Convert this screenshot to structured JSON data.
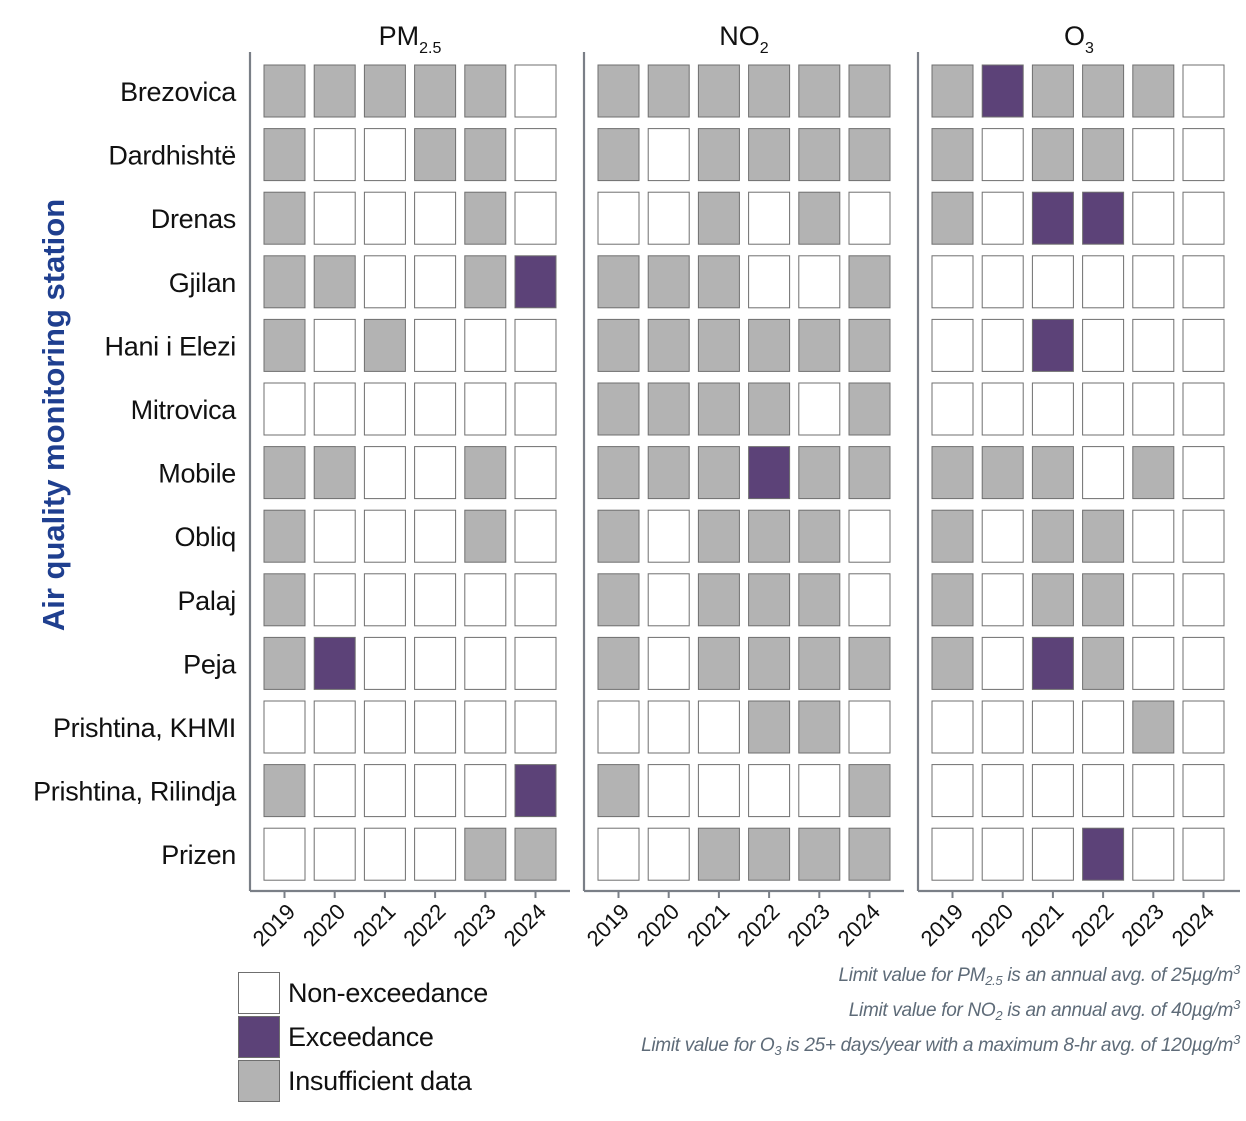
{
  "chart_data": {
    "type": "heatmap",
    "ylabel": "Air quality monitoring station",
    "stations": [
      "Brezovica",
      "Dardhishtë",
      "Drenas",
      "Gjilan",
      "Hani i Elezi",
      "Mitrovica",
      "Mobile",
      "Obliq",
      "Palaj",
      "Peja",
      "Prishtina, KHMI",
      "Prishtina, Rilindja",
      "Prizen"
    ],
    "years": [
      "2019",
      "2020",
      "2021",
      "2022",
      "2023",
      "2024"
    ],
    "status_key": {
      "N": "Non-exceedance",
      "E": "Exceedance",
      "I": "Insufficient data"
    },
    "colors": {
      "N": "#ffffff",
      "E": "#5c4278",
      "I": "#b3b3b3",
      "border": "#6f6f6f",
      "axis": "#7a7f87",
      "ylabel": "#1f3f8f",
      "note": "#5e6b78"
    },
    "panels": [
      {
        "title": "PM",
        "title_sub": "2.5",
        "cells": [
          [
            "I",
            "I",
            "I",
            "I",
            "I",
            "N"
          ],
          [
            "I",
            "N",
            "N",
            "I",
            "I",
            "N"
          ],
          [
            "I",
            "N",
            "N",
            "N",
            "I",
            "N"
          ],
          [
            "I",
            "I",
            "N",
            "N",
            "I",
            "E"
          ],
          [
            "I",
            "N",
            "I",
            "N",
            "N",
            "N"
          ],
          [
            "N",
            "N",
            "N",
            "N",
            "N",
            "N"
          ],
          [
            "I",
            "I",
            "N",
            "N",
            "I",
            "N"
          ],
          [
            "I",
            "N",
            "N",
            "N",
            "I",
            "N"
          ],
          [
            "I",
            "N",
            "N",
            "N",
            "N",
            "N"
          ],
          [
            "I",
            "E",
            "N",
            "N",
            "N",
            "N"
          ],
          [
            "N",
            "N",
            "N",
            "N",
            "N",
            "N"
          ],
          [
            "I",
            "N",
            "N",
            "N",
            "N",
            "E"
          ],
          [
            "N",
            "N",
            "N",
            "N",
            "I",
            "I"
          ]
        ]
      },
      {
        "title": "NO",
        "title_sub": "2",
        "cells": [
          [
            "I",
            "I",
            "I",
            "I",
            "I",
            "I"
          ],
          [
            "I",
            "N",
            "I",
            "I",
            "I",
            "I"
          ],
          [
            "N",
            "N",
            "I",
            "N",
            "I",
            "N"
          ],
          [
            "I",
            "I",
            "I",
            "N",
            "N",
            "I"
          ],
          [
            "I",
            "I",
            "I",
            "I",
            "I",
            "I"
          ],
          [
            "I",
            "I",
            "I",
            "I",
            "N",
            "I"
          ],
          [
            "I",
            "I",
            "I",
            "E",
            "I",
            "I"
          ],
          [
            "I",
            "N",
            "I",
            "I",
            "I",
            "N"
          ],
          [
            "I",
            "N",
            "I",
            "I",
            "I",
            "N"
          ],
          [
            "I",
            "N",
            "I",
            "I",
            "I",
            "I"
          ],
          [
            "N",
            "N",
            "N",
            "I",
            "I",
            "N"
          ],
          [
            "I",
            "N",
            "N",
            "N",
            "N",
            "I"
          ],
          [
            "N",
            "N",
            "I",
            "I",
            "I",
            "I"
          ]
        ]
      },
      {
        "title": "O",
        "title_sub": "3",
        "cells": [
          [
            "I",
            "E",
            "I",
            "I",
            "I",
            "N"
          ],
          [
            "I",
            "N",
            "I",
            "I",
            "N",
            "N"
          ],
          [
            "I",
            "N",
            "E",
            "E",
            "N",
            "N"
          ],
          [
            "N",
            "N",
            "N",
            "N",
            "N",
            "N"
          ],
          [
            "N",
            "N",
            "E",
            "N",
            "N",
            "N"
          ],
          [
            "N",
            "N",
            "N",
            "N",
            "N",
            "N"
          ],
          [
            "I",
            "I",
            "I",
            "N",
            "I",
            "N"
          ],
          [
            "I",
            "N",
            "I",
            "I",
            "N",
            "N"
          ],
          [
            "I",
            "N",
            "I",
            "I",
            "N",
            "N"
          ],
          [
            "I",
            "N",
            "E",
            "I",
            "N",
            "N"
          ],
          [
            "N",
            "N",
            "N",
            "N",
            "I",
            "N"
          ],
          [
            "N",
            "N",
            "N",
            "N",
            "N",
            "N"
          ],
          [
            "N",
            "N",
            "N",
            "E",
            "N",
            "N"
          ]
        ]
      }
    ]
  },
  "legend": {
    "non_exceedance": "Non-exceedance",
    "exceedance": "Exceedance",
    "insufficient": "Insufficient data"
  },
  "notes": {
    "pm25": {
      "a": "Limit value for PM",
      "sub": "2.5",
      "b": " is an annual avg. of 25µg/m",
      "sup": "3"
    },
    "no2": {
      "a": "Limit value for NO",
      "sub": "2",
      "b": " is an annual avg. of 40µg/m",
      "sup": "3"
    },
    "o3": {
      "a": "Limit value for O",
      "sub": "3",
      "b": " is 25+ days/year with a maximum 8-hr avg. of 120µg/m",
      "sup": "3"
    }
  }
}
